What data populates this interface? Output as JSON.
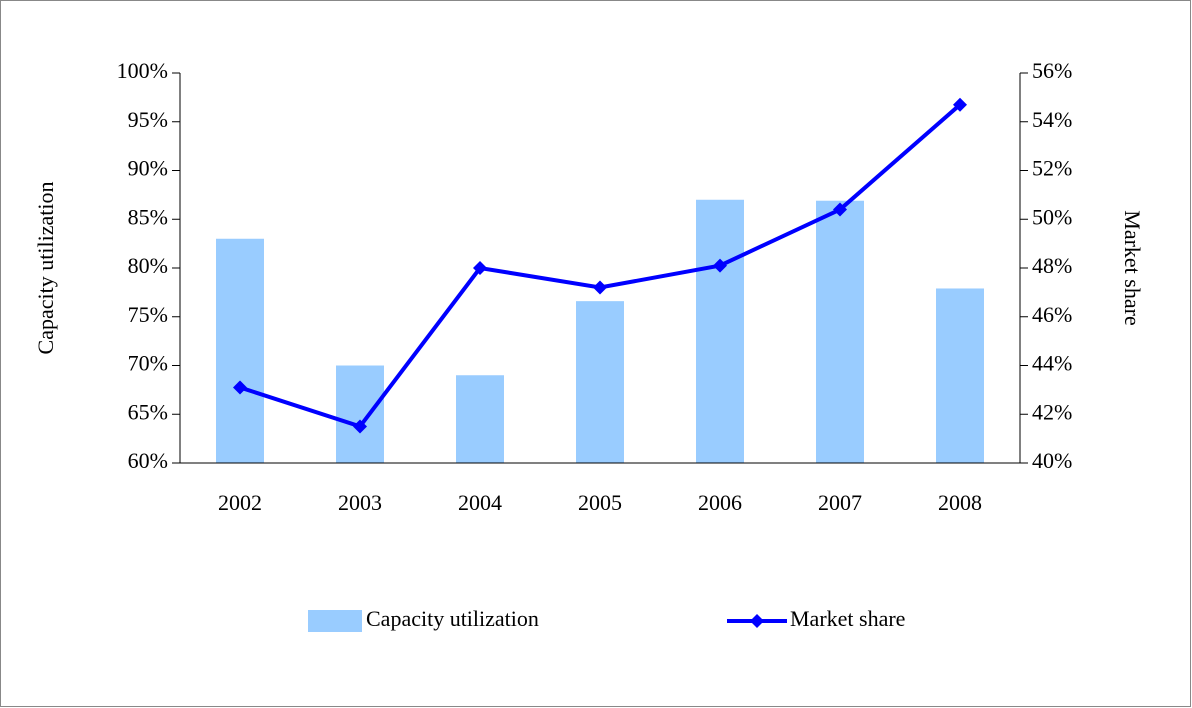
{
  "chart_data": {
    "type": "bar",
    "categories": [
      "2002",
      "2003",
      "2004",
      "2005",
      "2006",
      "2007",
      "2008"
    ],
    "series": [
      {
        "name": "Capacity utilization",
        "type": "bar",
        "color": "#99ccff",
        "values": [
          83,
          70,
          69,
          76.6,
          87,
          86.9,
          77.9
        ]
      },
      {
        "name": "Market share",
        "type": "line",
        "axis": "y2",
        "color": "#0000ff",
        "values": [
          43.1,
          41.5,
          48.0,
          47.2,
          48.1,
          50.4,
          54.7
        ]
      }
    ],
    "y_label": "Capacity utilization",
    "y2_label": "Market share",
    "ylim": [
      60,
      100
    ],
    "yticks": [
      {
        "value": 60,
        "label": "60%"
      },
      {
        "value": 65,
        "label": "65%"
      },
      {
        "value": 70,
        "label": "70%"
      },
      {
        "value": 75,
        "label": "75%"
      },
      {
        "value": 80,
        "label": "80%"
      },
      {
        "value": 85,
        "label": "85%"
      },
      {
        "value": 90,
        "label": "90%"
      },
      {
        "value": 95,
        "label": "95%"
      },
      {
        "value": 100,
        "label": "100%"
      }
    ],
    "y2lim": [
      40,
      56
    ],
    "y2ticks": [
      {
        "value": 40,
        "label": "40%"
      },
      {
        "value": 42,
        "label": "42%"
      },
      {
        "value": 44,
        "label": "44%"
      },
      {
        "value": 46,
        "label": "46%"
      },
      {
        "value": 48,
        "label": "48%"
      },
      {
        "value": 50,
        "label": "50%"
      },
      {
        "value": 52,
        "label": "52%"
      },
      {
        "value": 54,
        "label": "54%"
      },
      {
        "value": 56,
        "label": "56%"
      }
    ],
    "grid": false,
    "legend": "bottom"
  }
}
